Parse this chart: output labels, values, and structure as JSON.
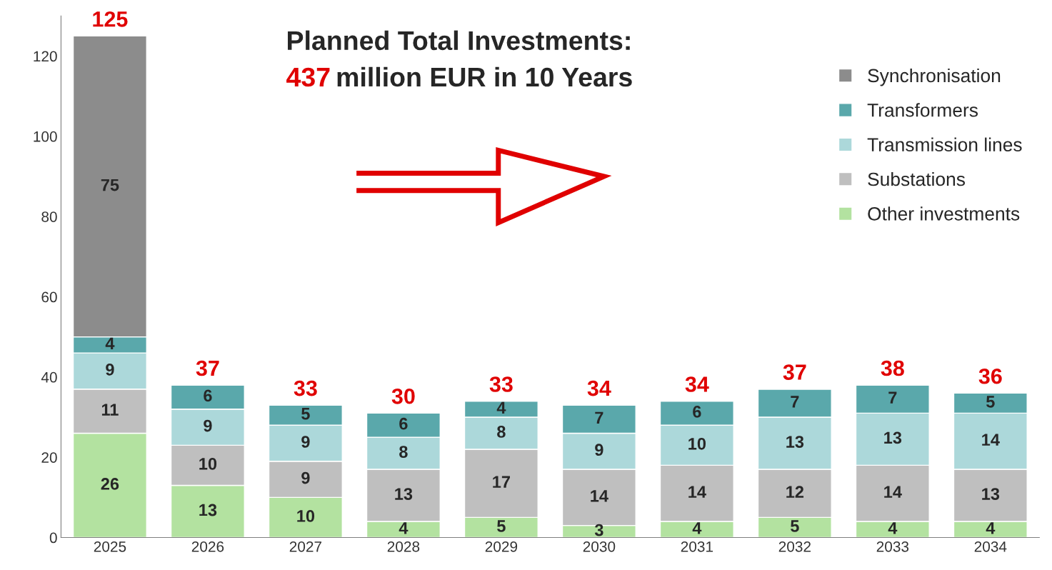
{
  "chart_data": {
    "type": "bar",
    "stacked": true,
    "title": "Planned Total Investments:",
    "subtitle": "437 million EUR in 10 Years",
    "categories": [
      "2025",
      "2026",
      "2027",
      "2028",
      "2029",
      "2030",
      "2031",
      "2032",
      "2033",
      "2034"
    ],
    "series": [
      {
        "name": "Other investments",
        "color": "#b3e2a0",
        "values": [
          26,
          13,
          10,
          4,
          5,
          3,
          4,
          5,
          4,
          4
        ]
      },
      {
        "name": "Substations",
        "color": "#bfbfbf",
        "values": [
          11,
          10,
          9,
          13,
          17,
          14,
          14,
          12,
          14,
          13
        ]
      },
      {
        "name": "Transmission lines",
        "color": "#acd8da",
        "values": [
          9,
          9,
          9,
          8,
          8,
          9,
          10,
          13,
          13,
          14
        ]
      },
      {
        "name": "Transformers",
        "color": "#5aa8ab",
        "values": [
          4,
          6,
          5,
          6,
          4,
          7,
          6,
          7,
          7,
          5
        ]
      },
      {
        "name": "Synchronisation",
        "color": "#8c8c8c",
        "values": [
          75,
          null,
          null,
          null,
          null,
          null,
          null,
          null,
          null,
          null
        ]
      }
    ],
    "totals": [
      "125",
      "37",
      "33",
      "30",
      "33",
      "34",
      "34",
      "37",
      "38",
      "36"
    ],
    "data_labels": true,
    "ylim": [
      0,
      130
    ],
    "yticks": [
      0,
      20,
      40,
      60,
      80,
      100,
      120
    ],
    "grid": false,
    "legend": "right"
  }
}
